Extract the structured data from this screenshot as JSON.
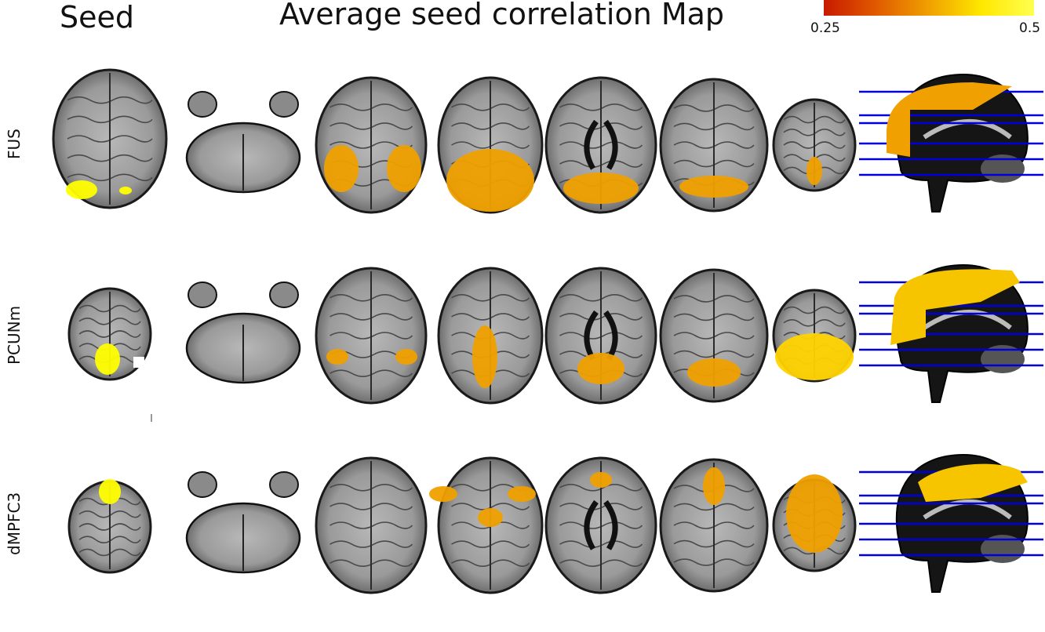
{
  "titles": {
    "seed": "Seed",
    "map": "Average seed correlation Map"
  },
  "colorbar": {
    "min_label": "0.25",
    "max_label": "0.5",
    "colors": [
      "#c81a00",
      "#e05a00",
      "#f0a000",
      "#ffe800",
      "#ffff50"
    ]
  },
  "rows": [
    {
      "label": "FUS"
    },
    {
      "label": "PCUNm"
    },
    {
      "label": "dMPFC3"
    }
  ],
  "colors": {
    "activation": "#f0a000",
    "seed": "#ffff00",
    "slice_line": "#0000dd",
    "brain": "#8c8c8c"
  }
}
